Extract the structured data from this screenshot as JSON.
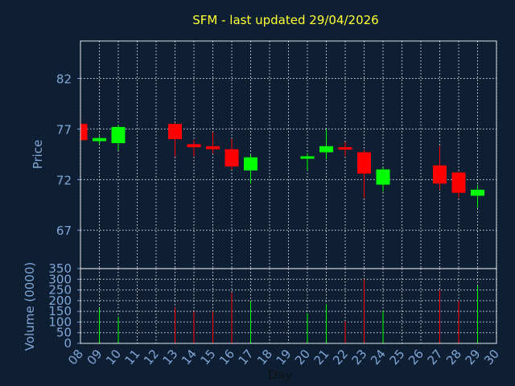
{
  "title": "SFM - last updated 29/04/2026",
  "colors": {
    "background": "#0f1f33",
    "title": "#ffff33",
    "axis_text": "#7fa6d6",
    "xlabel_text": "#111111",
    "up": "#00ff00",
    "down": "#ff0000",
    "grid": "#ffffff"
  },
  "chart_data": [
    {
      "type": "candlestick",
      "xlabel": "",
      "ylabel": "Price",
      "ylim": [
        63.2,
        85.7
      ],
      "yticks": [
        67,
        72,
        77,
        82
      ],
      "grid": true,
      "x": [
        "08",
        "09",
        "10",
        "11",
        "12",
        "13",
        "14",
        "15",
        "16",
        "17",
        "18",
        "19",
        "20",
        "21",
        "22",
        "23",
        "24",
        "25",
        "26",
        "27",
        "28",
        "29",
        "30"
      ],
      "candles": [
        {
          "day": "08",
          "open": 77.5,
          "high": 77.8,
          "low": 75.7,
          "close": 75.9
        },
        {
          "day": "09",
          "open": 75.8,
          "high": 76.3,
          "low": 75.5,
          "close": 76.1
        },
        {
          "day": "10",
          "open": 75.6,
          "high": 77.4,
          "low": 74.9,
          "close": 77.2
        },
        {
          "day": "13",
          "open": 77.5,
          "high": 77.6,
          "low": 74.3,
          "close": 76.0
        },
        {
          "day": "14",
          "open": 75.5,
          "high": 75.9,
          "low": 74.3,
          "close": 75.2
        },
        {
          "day": "15",
          "open": 75.3,
          "high": 76.7,
          "low": 74.6,
          "close": 75.0
        },
        {
          "day": "16",
          "open": 75.0,
          "high": 76.0,
          "low": 73.0,
          "close": 73.3
        },
        {
          "day": "17",
          "open": 72.9,
          "high": 74.5,
          "low": 71.6,
          "close": 74.2
        },
        {
          "day": "20",
          "open": 74.1,
          "high": 74.6,
          "low": 72.9,
          "close": 74.3
        },
        {
          "day": "21",
          "open": 74.7,
          "high": 77.0,
          "low": 74.0,
          "close": 75.3
        },
        {
          "day": "22",
          "open": 75.2,
          "high": 75.7,
          "low": 74.3,
          "close": 75.0
        },
        {
          "day": "23",
          "open": 74.7,
          "high": 74.9,
          "low": 70.2,
          "close": 72.6
        },
        {
          "day": "24",
          "open": 71.5,
          "high": 73.2,
          "low": 70.8,
          "close": 73.0
        },
        {
          "day": "27",
          "open": 73.4,
          "high": 75.3,
          "low": 71.0,
          "close": 71.6
        },
        {
          "day": "28",
          "open": 72.7,
          "high": 72.8,
          "low": 70.2,
          "close": 70.7
        },
        {
          "day": "29",
          "open": 70.4,
          "high": 71.5,
          "low": 69.2,
          "close": 71.0
        }
      ]
    },
    {
      "type": "bar",
      "xlabel": "Day",
      "ylabel": "Volume (0000)",
      "ylim": [
        0,
        350
      ],
      "yticks": [
        0,
        50,
        100,
        150,
        200,
        250,
        300,
        350
      ],
      "grid": true,
      "x": [
        "08",
        "09",
        "10",
        "11",
        "12",
        "13",
        "14",
        "15",
        "16",
        "17",
        "18",
        "19",
        "20",
        "21",
        "22",
        "23",
        "24",
        "25",
        "26",
        "27",
        "28",
        "29",
        "30"
      ],
      "bars": [
        {
          "day": "09",
          "value": 165,
          "direction": "up"
        },
        {
          "day": "10",
          "value": 125,
          "direction": "up"
        },
        {
          "day": "13",
          "value": 168,
          "direction": "down"
        },
        {
          "day": "14",
          "value": 148,
          "direction": "down"
        },
        {
          "day": "15",
          "value": 150,
          "direction": "down"
        },
        {
          "day": "16",
          "value": 238,
          "direction": "down"
        },
        {
          "day": "17",
          "value": 198,
          "direction": "up"
        },
        {
          "day": "20",
          "value": 142,
          "direction": "up"
        },
        {
          "day": "21",
          "value": 185,
          "direction": "up"
        },
        {
          "day": "22",
          "value": 105,
          "direction": "down"
        },
        {
          "day": "23",
          "value": 300,
          "direction": "down"
        },
        {
          "day": "24",
          "value": 152,
          "direction": "up"
        },
        {
          "day": "27",
          "value": 248,
          "direction": "down"
        },
        {
          "day": "28",
          "value": 200,
          "direction": "down"
        },
        {
          "day": "29",
          "value": 270,
          "direction": "up"
        }
      ]
    }
  ]
}
